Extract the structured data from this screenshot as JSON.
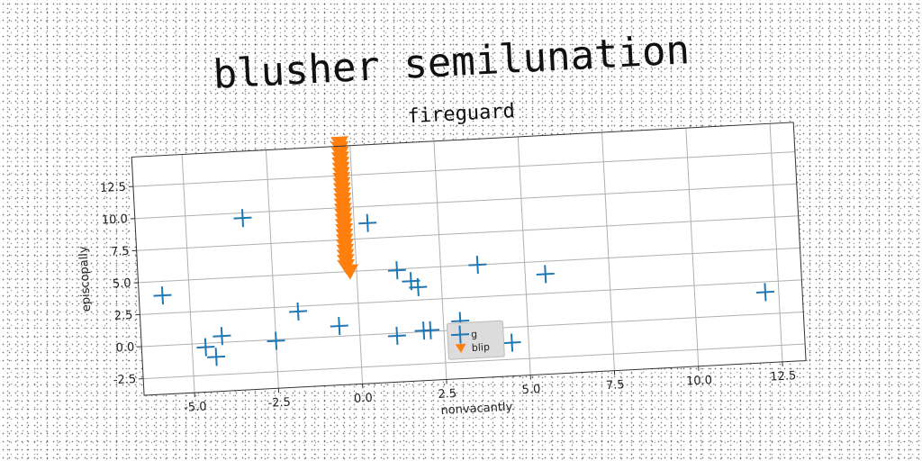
{
  "title": "blusher semilunation",
  "chart_data": {
    "type": "scatter",
    "title": "fireguard",
    "xlabel": "nonvacantly",
    "ylabel": "episcopally",
    "xlim": [
      -6.5,
      13.2
    ],
    "ylim": [
      -3.8,
      14.8
    ],
    "xticks": [
      "-5.0",
      "-2.5",
      "0.0",
      "2.5",
      "5.0",
      "7.5",
      "10.0",
      "12.5"
    ],
    "yticks": [
      "-2.5",
      "0.0",
      "2.5",
      "5.0",
      "7.5",
      "10.0",
      "12.5"
    ],
    "grid": true,
    "legend": "lower center",
    "series": [
      {
        "name": "g",
        "marker": "plus",
        "color": "#1f77b4",
        "points": [
          [
            -5.8,
            3.9
          ],
          [
            -4.6,
            -0.3
          ],
          [
            -4.3,
            -1.1
          ],
          [
            -4.1,
            0.5
          ],
          [
            -3.3,
            9.6
          ],
          [
            -2.5,
            -0.1
          ],
          [
            -1.8,
            2.1
          ],
          [
            -0.6,
            0.8
          ],
          [
            0.4,
            8.7
          ],
          [
            1.1,
            -0.2
          ],
          [
            1.2,
            4.9
          ],
          [
            1.6,
            4.0
          ],
          [
            1.8,
            3.5
          ],
          [
            1.9,
            0.1
          ],
          [
            2.1,
            0.1
          ],
          [
            3.0,
            0.7
          ],
          [
            3.6,
            5.0
          ],
          [
            4.5,
            -1.2
          ],
          [
            5.6,
            4.0
          ],
          [
            12.1,
            1.7
          ]
        ]
      },
      {
        "name": "blip",
        "marker": "triangle-down",
        "color": "#ff7f0e",
        "points": [
          [
            -0.3,
            15.0
          ],
          [
            -0.3,
            14.6
          ],
          [
            -0.3,
            14.2
          ],
          [
            -0.3,
            13.8
          ],
          [
            -0.3,
            13.4
          ],
          [
            -0.3,
            13.0
          ],
          [
            -0.3,
            12.6
          ],
          [
            -0.3,
            12.2
          ],
          [
            -0.3,
            11.8
          ],
          [
            -0.3,
            11.4
          ],
          [
            -0.3,
            11.0
          ],
          [
            -0.3,
            10.6
          ],
          [
            -0.3,
            10.2
          ],
          [
            -0.3,
            9.8
          ],
          [
            -0.3,
            9.4
          ],
          [
            -0.3,
            9.0
          ],
          [
            -0.3,
            8.6
          ],
          [
            -0.3,
            8.2
          ],
          [
            -0.3,
            7.8
          ],
          [
            -0.3,
            7.4
          ],
          [
            -0.3,
            7.0
          ],
          [
            -0.3,
            6.6
          ],
          [
            -0.3,
            6.2
          ],
          [
            -0.3,
            5.8
          ],
          [
            -0.3,
            5.4
          ],
          [
            -0.2,
            5.0
          ]
        ]
      }
    ]
  }
}
